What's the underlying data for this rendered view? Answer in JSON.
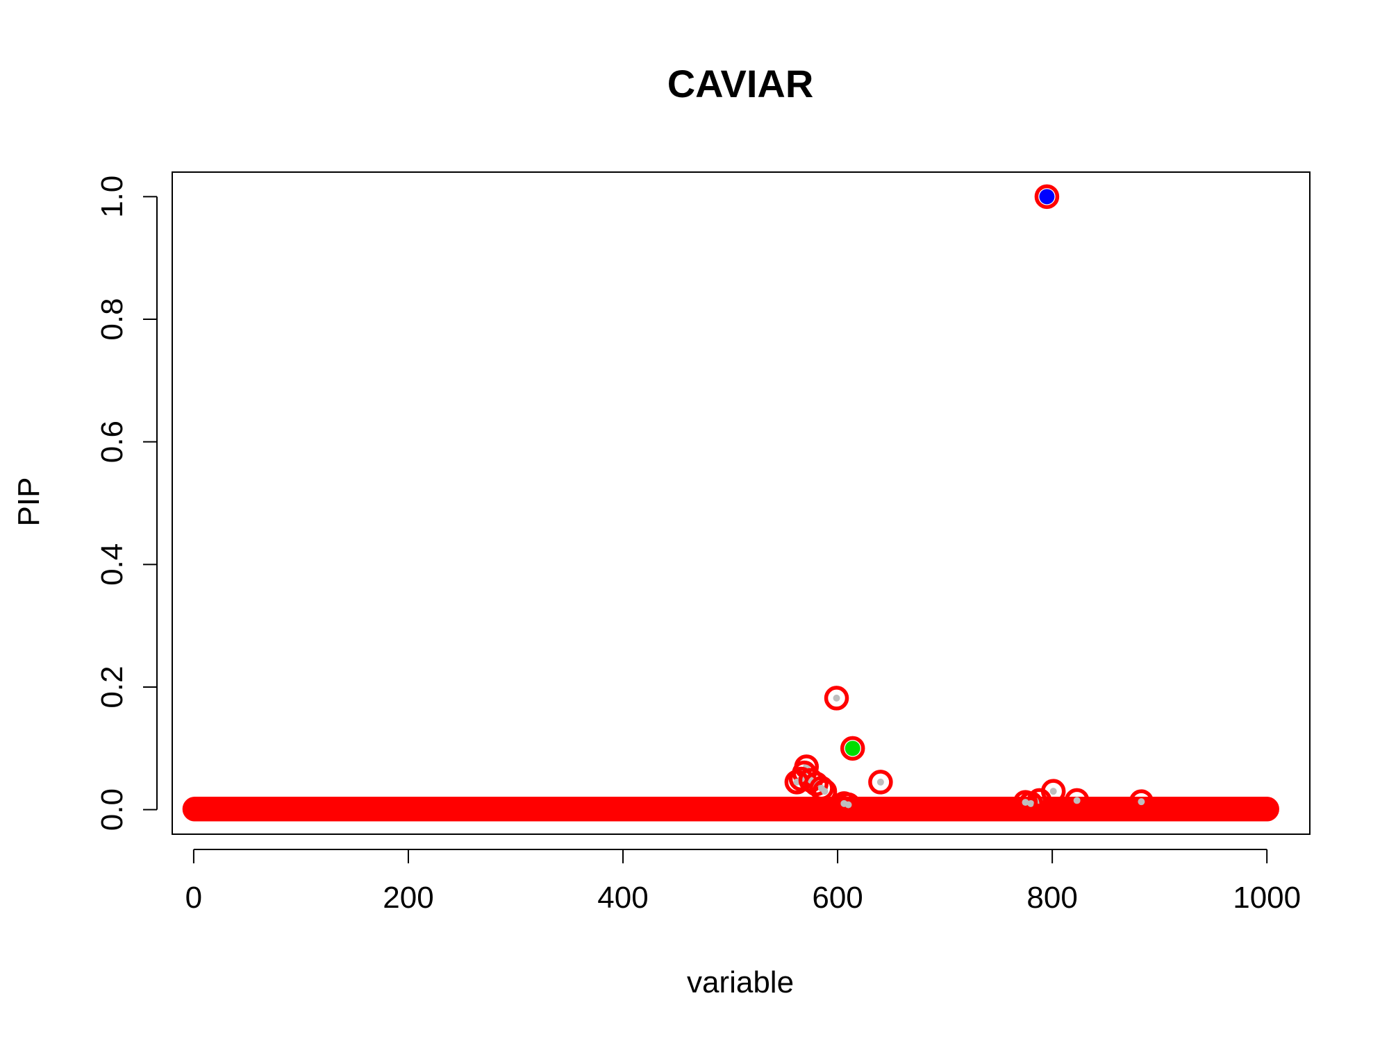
{
  "chart_data": {
    "type": "scatter",
    "title": "CAVIAR",
    "xlabel": "variable",
    "ylabel": "PIP",
    "xlim": [
      -20,
      1040
    ],
    "ylim": [
      -0.04,
      1.04
    ],
    "x_ticks": [
      0,
      200,
      400,
      600,
      800,
      1000
    ],
    "y_ticks": [
      0.0,
      0.2,
      0.4,
      0.6,
      0.8,
      1.0
    ],
    "x_tick_labels": [
      "0",
      "200",
      "400",
      "600",
      "800",
      "1000"
    ],
    "y_tick_labels": [
      "0.0",
      "0.2",
      "0.4",
      "0.6",
      "0.8",
      "1.0"
    ],
    "grid": false,
    "n_variables": 1000,
    "colors": {
      "ring": "#ff0000",
      "causal_primary": "#0000ff",
      "causal_secondary": "#00dd00",
      "other_fill": "#bebebe"
    },
    "baseline_pip": 0.001,
    "elevated_points": [
      {
        "x": 795,
        "y": 1.0,
        "fill": "causal_primary"
      },
      {
        "x": 599,
        "y": 0.182,
        "fill": "other_fill"
      },
      {
        "x": 614,
        "y": 0.1,
        "fill": "causal_secondary"
      },
      {
        "x": 640,
        "y": 0.045,
        "fill": "other_fill"
      },
      {
        "x": 571,
        "y": 0.07,
        "fill": "other_fill"
      },
      {
        "x": 569,
        "y": 0.06,
        "fill": "other_fill"
      },
      {
        "x": 566,
        "y": 0.05,
        "fill": "other_fill"
      },
      {
        "x": 562,
        "y": 0.045,
        "fill": "other_fill"
      },
      {
        "x": 575,
        "y": 0.048,
        "fill": "other_fill"
      },
      {
        "x": 580,
        "y": 0.042,
        "fill": "other_fill"
      },
      {
        "x": 585,
        "y": 0.035,
        "fill": "other_fill"
      },
      {
        "x": 588,
        "y": 0.03,
        "fill": "other_fill"
      },
      {
        "x": 801,
        "y": 0.03,
        "fill": "other_fill"
      },
      {
        "x": 823,
        "y": 0.015,
        "fill": "other_fill"
      },
      {
        "x": 883,
        "y": 0.013,
        "fill": "other_fill"
      },
      {
        "x": 788,
        "y": 0.015,
        "fill": "other_fill"
      },
      {
        "x": 780,
        "y": 0.01,
        "fill": "other_fill"
      },
      {
        "x": 775,
        "y": 0.012,
        "fill": "other_fill"
      },
      {
        "x": 606,
        "y": 0.01,
        "fill": "other_fill"
      },
      {
        "x": 610,
        "y": 0.008,
        "fill": "other_fill"
      }
    ]
  }
}
